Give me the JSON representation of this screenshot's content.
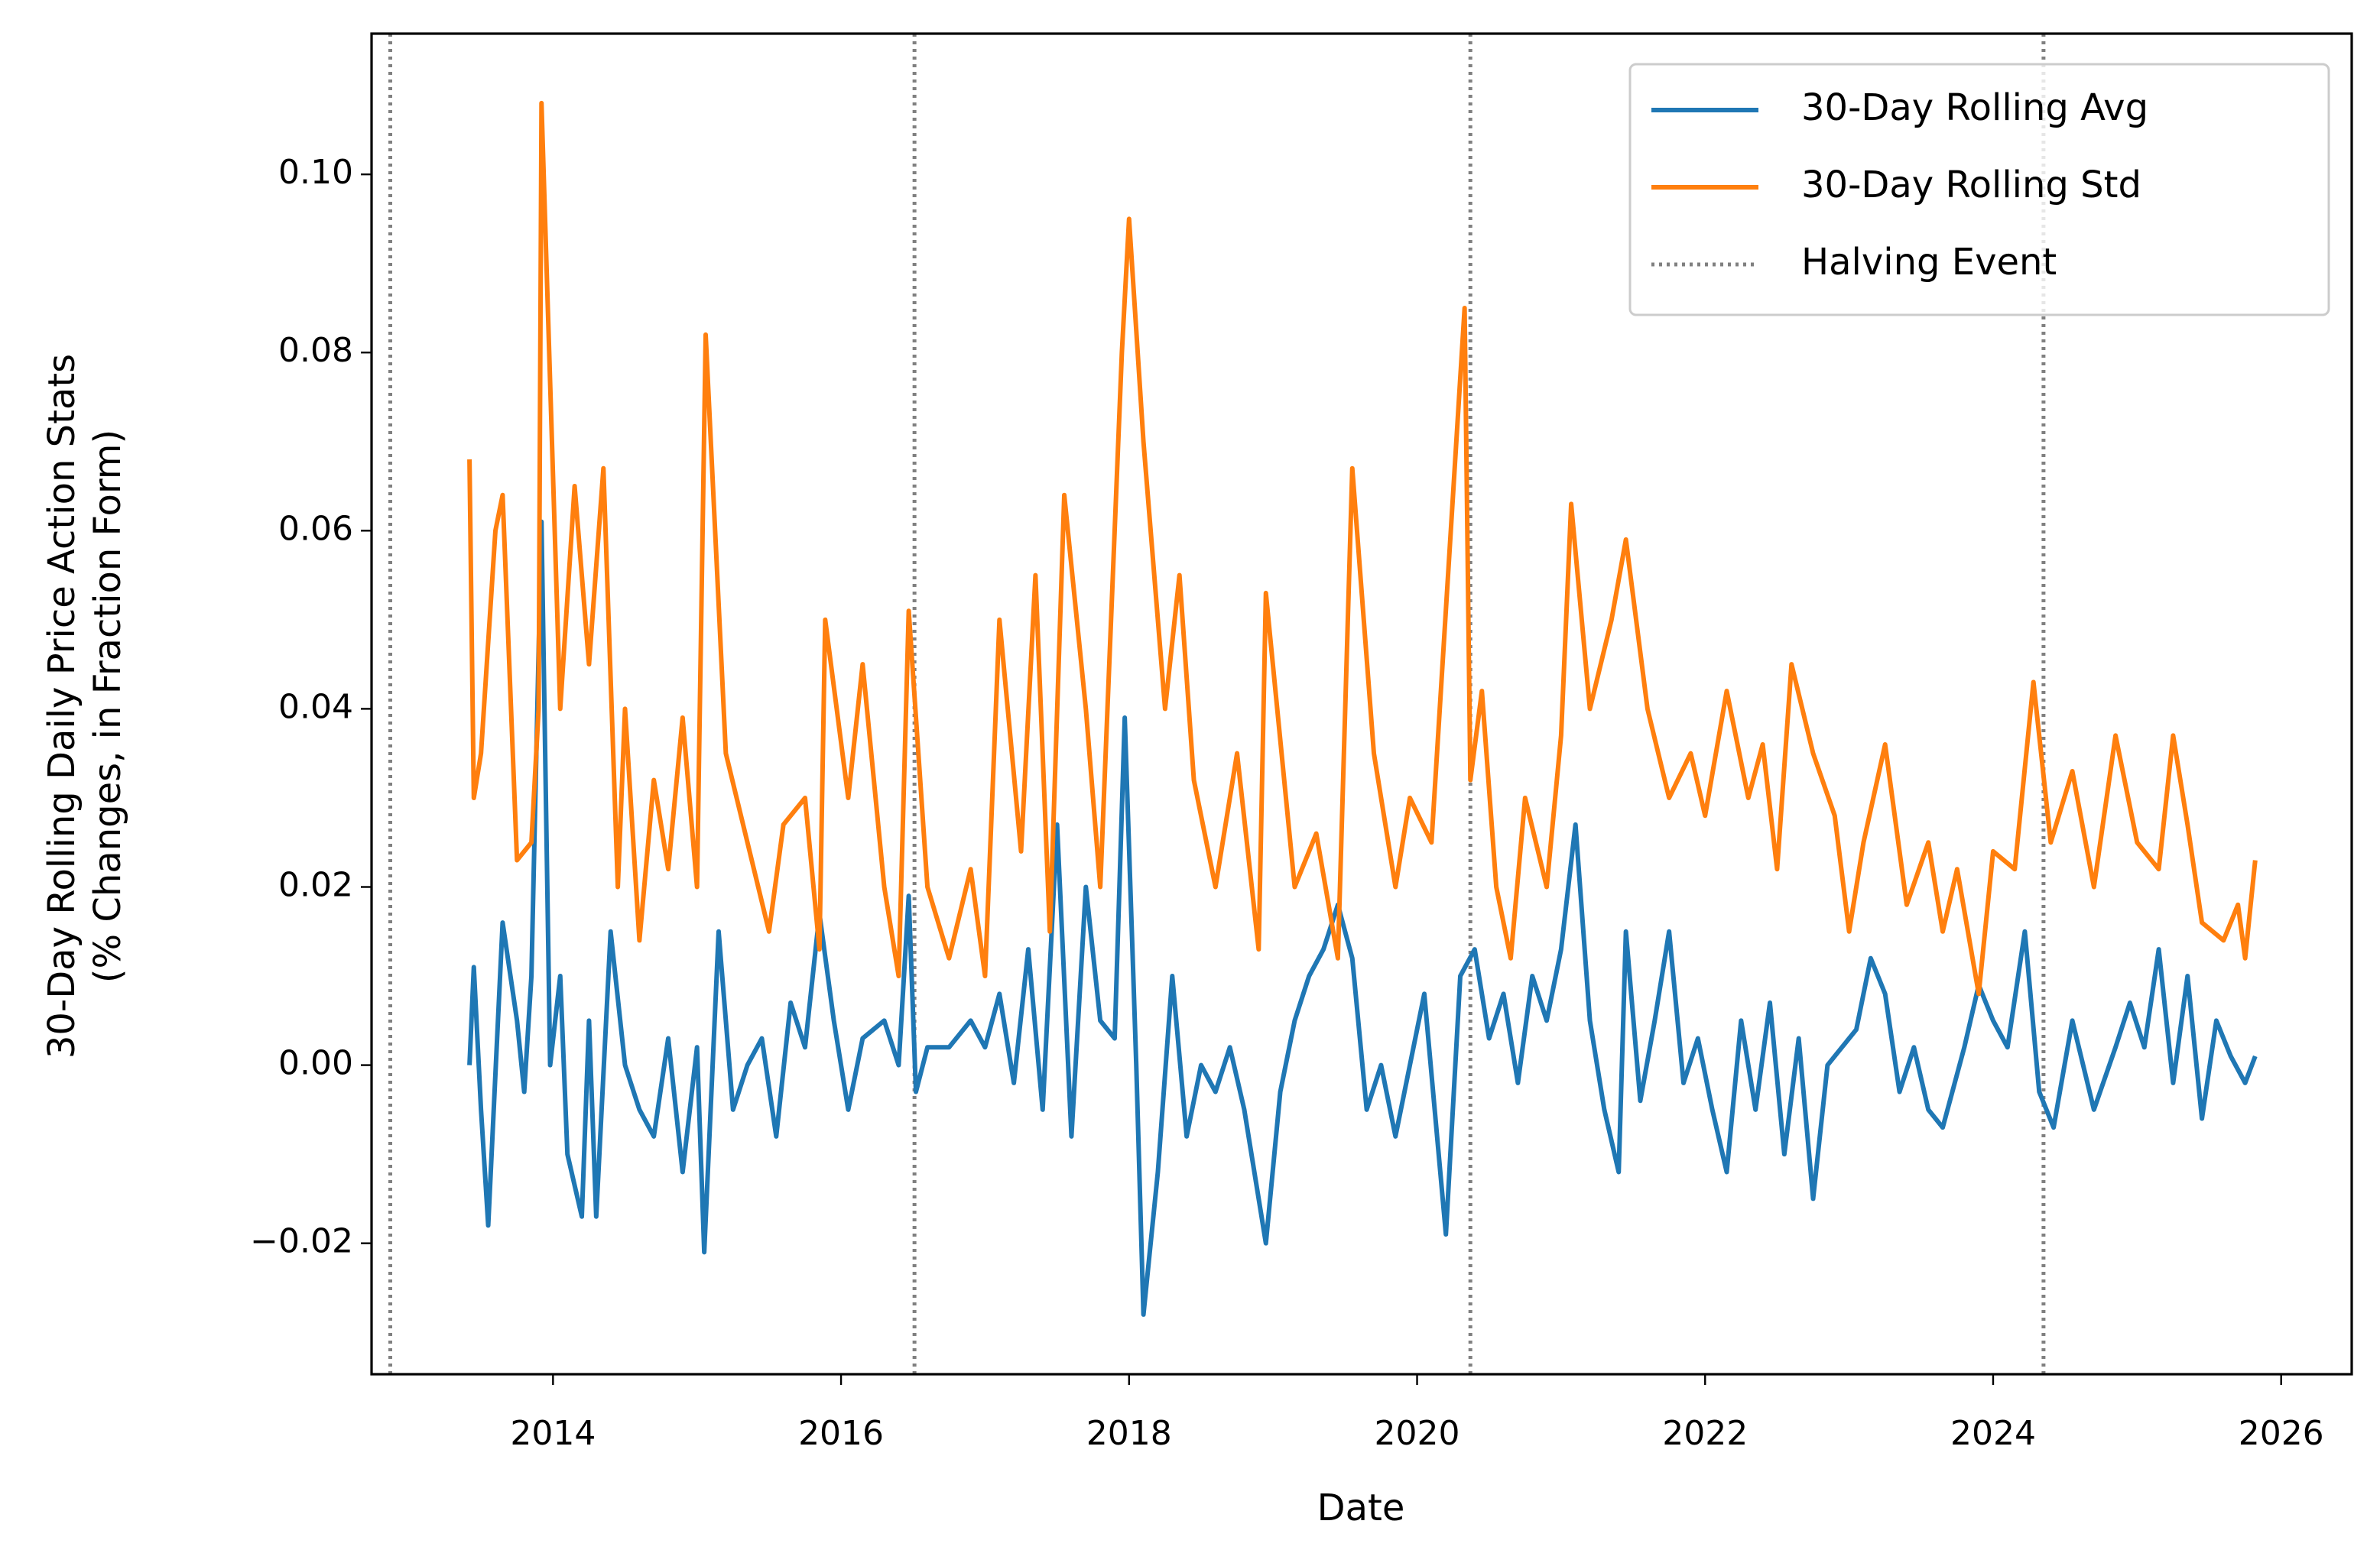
{
  "chart_data": {
    "type": "line",
    "xlabel": "Date",
    "ylabel": [
      "30-Day Rolling Daily Price Action Stats",
      "(% Changes, in Fraction Form)"
    ],
    "xlim": [
      2012.74,
      2026.49
    ],
    "ylim": [
      -0.0347,
      0.1158
    ],
    "xticks": [
      2014,
      2016,
      2018,
      2020,
      2022,
      2024,
      2026
    ],
    "yticks": [
      {
        "value": -0.02,
        "label": "−0.02"
      },
      {
        "value": 0,
        "label": "0.00"
      },
      0.02,
      0.04,
      0.06,
      0.08,
      {
        "value": 0.1,
        "label": "0.10"
      }
    ],
    "legend": "upper right",
    "series": [
      {
        "name": "30-Day Rolling Avg",
        "color": "#1f77b4",
        "x": [
          2013.42,
          2013.45,
          2013.5,
          2013.55,
          2013.65,
          2013.75,
          2013.8,
          2013.85,
          2013.92,
          2013.98,
          2014.05,
          2014.1,
          2014.2,
          2014.25,
          2014.3,
          2014.4,
          2014.5,
          2014.6,
          2014.7,
          2014.8,
          2014.9,
          2015.0,
          2015.05,
          2015.15,
          2015.25,
          2015.35,
          2015.45,
          2015.55,
          2015.65,
          2015.75,
          2015.85,
          2015.95,
          2016.05,
          2016.15,
          2016.3,
          2016.4,
          2016.47,
          2016.52,
          2016.6,
          2016.75,
          2016.9,
          2017.0,
          2017.1,
          2017.2,
          2017.3,
          2017.4,
          2017.5,
          2017.6,
          2017.7,
          2017.8,
          2017.9,
          2017.97,
          2018.05,
          2018.1,
          2018.2,
          2018.3,
          2018.4,
          2018.5,
          2018.6,
          2018.7,
          2018.8,
          2018.95,
          2019.05,
          2019.15,
          2019.25,
          2019.35,
          2019.45,
          2019.55,
          2019.65,
          2019.75,
          2019.85,
          2019.95,
          2020.05,
          2020.2,
          2020.3,
          2020.4,
          2020.5,
          2020.6,
          2020.7,
          2020.8,
          2020.9,
          2021.0,
          2021.1,
          2021.2,
          2021.3,
          2021.4,
          2021.45,
          2021.55,
          2021.65,
          2021.75,
          2021.85,
          2021.95,
          2022.05,
          2022.15,
          2022.25,
          2022.35,
          2022.45,
          2022.55,
          2022.65,
          2022.75,
          2022.85,
          2022.95,
          2023.05,
          2023.15,
          2023.25,
          2023.35,
          2023.45,
          2023.55,
          2023.65,
          2023.8,
          2023.9,
          2024.0,
          2024.1,
          2024.22,
          2024.32,
          2024.42,
          2024.55,
          2024.7,
          2024.85,
          2024.95,
          2025.05,
          2025.15,
          2025.25,
          2025.35,
          2025.45,
          2025.55,
          2025.65,
          2025.75,
          2025.82
        ],
        "values": [
          0.0,
          0.011,
          -0.005,
          -0.018,
          0.016,
          0.005,
          -0.003,
          0.01,
          0.061,
          0.0,
          0.01,
          -0.01,
          -0.017,
          0.005,
          -0.017,
          0.015,
          0.0,
          -0.005,
          -0.008,
          0.003,
          -0.012,
          0.002,
          -0.021,
          0.015,
          -0.005,
          0.0,
          0.003,
          -0.008,
          0.007,
          0.002,
          0.017,
          0.005,
          -0.005,
          0.003,
          0.005,
          0.0,
          0.019,
          -0.003,
          0.002,
          0.002,
          0.005,
          0.002,
          0.008,
          -0.002,
          0.013,
          -0.005,
          0.027,
          -0.008,
          0.02,
          0.005,
          0.003,
          0.039,
          0.0,
          -0.028,
          -0.012,
          0.01,
          -0.008,
          0.0,
          -0.003,
          0.002,
          -0.005,
          -0.02,
          -0.003,
          0.005,
          0.01,
          0.013,
          0.018,
          0.012,
          -0.005,
          0.0,
          -0.008,
          0.0,
          0.008,
          -0.019,
          0.01,
          0.013,
          0.003,
          0.008,
          -0.002,
          0.01,
          0.005,
          0.013,
          0.027,
          0.005,
          -0.005,
          -0.012,
          0.015,
          -0.004,
          0.005,
          0.015,
          -0.002,
          0.003,
          -0.005,
          -0.012,
          0.005,
          -0.005,
          0.007,
          -0.01,
          0.003,
          -0.015,
          0.0,
          0.002,
          0.004,
          0.012,
          0.008,
          -0.003,
          0.002,
          -0.005,
          -0.007,
          0.002,
          0.009,
          0.005,
          0.002,
          0.015,
          -0.003,
          -0.007,
          0.005,
          -0.005,
          0.002,
          0.007,
          0.002,
          0.013,
          -0.002,
          0.01,
          -0.006,
          0.005,
          0.001,
          -0.002,
          0.001
        ]
      },
      {
        "name": "30-Day Rolling Std",
        "color": "#ff7f0e",
        "x": [
          2013.42,
          2013.45,
          2013.5,
          2013.6,
          2013.65,
          2013.75,
          2013.85,
          2013.9,
          2013.92,
          2014.05,
          2014.15,
          2014.25,
          2014.35,
          2014.45,
          2014.5,
          2014.6,
          2014.7,
          2014.8,
          2014.9,
          2015.0,
          2015.06,
          2015.2,
          2015.35,
          2015.5,
          2015.6,
          2015.75,
          2015.85,
          2015.89,
          2016.05,
          2016.15,
          2016.3,
          2016.4,
          2016.47,
          2016.6,
          2016.75,
          2016.9,
          2017.0,
          2017.1,
          2017.25,
          2017.35,
          2017.45,
          2017.55,
          2017.7,
          2017.8,
          2017.95,
          2018.0,
          2018.1,
          2018.25,
          2018.35,
          2018.45,
          2018.6,
          2018.75,
          2018.9,
          2018.95,
          2019.15,
          2019.3,
          2019.45,
          2019.55,
          2019.7,
          2019.85,
          2019.95,
          2020.1,
          2020.33,
          2020.37,
          2020.45,
          2020.55,
          2020.65,
          2020.75,
          2020.9,
          2021.0,
          2021.07,
          2021.2,
          2021.35,
          2021.45,
          2021.6,
          2021.75,
          2021.9,
          2022.0,
          2022.15,
          2022.3,
          2022.4,
          2022.5,
          2022.6,
          2022.75,
          2022.9,
          2023.0,
          2023.1,
          2023.25,
          2023.4,
          2023.55,
          2023.65,
          2023.75,
          2023.9,
          2024.0,
          2024.15,
          2024.28,
          2024.4,
          2024.55,
          2024.7,
          2024.85,
          2025.0,
          2025.15,
          2025.25,
          2025.35,
          2025.45,
          2025.6,
          2025.7,
          2025.75,
          2025.82
        ],
        "values": [
          0.068,
          0.03,
          0.035,
          0.06,
          0.064,
          0.023,
          0.025,
          0.04,
          0.108,
          0.04,
          0.065,
          0.045,
          0.067,
          0.02,
          0.04,
          0.014,
          0.032,
          0.022,
          0.039,
          0.02,
          0.082,
          0.035,
          0.025,
          0.015,
          0.027,
          0.03,
          0.013,
          0.05,
          0.03,
          0.045,
          0.02,
          0.01,
          0.051,
          0.02,
          0.012,
          0.022,
          0.01,
          0.05,
          0.024,
          0.055,
          0.015,
          0.064,
          0.04,
          0.02,
          0.08,
          0.095,
          0.07,
          0.04,
          0.055,
          0.032,
          0.02,
          0.035,
          0.013,
          0.053,
          0.02,
          0.026,
          0.012,
          0.067,
          0.035,
          0.02,
          0.03,
          0.025,
          0.085,
          0.032,
          0.042,
          0.02,
          0.012,
          0.03,
          0.02,
          0.037,
          0.063,
          0.04,
          0.05,
          0.059,
          0.04,
          0.03,
          0.035,
          0.028,
          0.042,
          0.03,
          0.036,
          0.022,
          0.045,
          0.035,
          0.028,
          0.015,
          0.025,
          0.036,
          0.018,
          0.025,
          0.015,
          0.022,
          0.008,
          0.024,
          0.022,
          0.043,
          0.025,
          0.033,
          0.02,
          0.037,
          0.025,
          0.022,
          0.037,
          0.027,
          0.016,
          0.014,
          0.018,
          0.012,
          0.023
        ]
      }
    ],
    "vlines": {
      "name": "Halving Event",
      "color": "#808080",
      "x": [
        2012.87,
        2016.51,
        2020.37,
        2024.35
      ]
    }
  }
}
